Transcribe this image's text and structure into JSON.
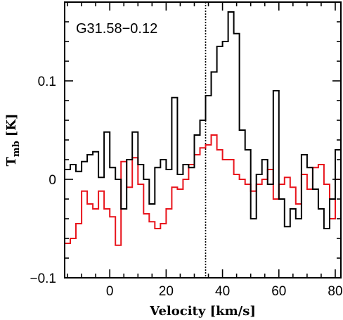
{
  "chart_data": {
    "type": "line",
    "title": "",
    "annotation": "G31.58−0.12",
    "xlabel": "Velocity [km/s]",
    "ylabel_main": "T",
    "ylabel_sub": "mb",
    "ylabel_unit": "[K]",
    "xlim": [
      -16,
      82
    ],
    "ylim": [
      -0.1,
      0.18
    ],
    "x_ticks": [
      0,
      20,
      40,
      60,
      80
    ],
    "x_tick_labels": [
      "0",
      "20",
      "40",
      "60",
      "80"
    ],
    "y_ticks": [
      -0.1,
      0,
      0.1
    ],
    "y_tick_labels": [
      "−0.1",
      "0",
      "0.1"
    ],
    "reference_velocity": 34,
    "series": [
      {
        "color": "#000000",
        "x_edges": [
          -16,
          -14,
          -12,
          -10,
          -8,
          -6,
          -4,
          -2,
          0,
          2,
          4,
          6,
          8,
          10,
          12,
          14,
          16,
          18,
          20,
          22,
          24,
          26,
          28,
          30,
          32,
          34,
          36,
          38,
          40,
          42,
          44,
          46,
          48,
          50,
          52,
          54,
          56,
          58,
          60,
          62,
          64,
          66,
          68,
          70,
          72,
          74,
          76,
          78,
          80,
          82
        ],
        "values": [
          0.01,
          0.015,
          0.008,
          0.018,
          0.025,
          0.028,
          0.002,
          0.048,
          0.012,
          0.0,
          -0.03,
          0.02,
          0.048,
          0.015,
          0.0,
          -0.025,
          0.012,
          0.02,
          0.01,
          0.083,
          0.005,
          0.015,
          0.012,
          0.045,
          0.06,
          0.085,
          0.109,
          0.135,
          0.14,
          0.17,
          0.148,
          0.05,
          0.03,
          -0.04,
          0.005,
          0.02,
          -0.005,
          0.09,
          -0.02,
          -0.048,
          -0.03,
          -0.04,
          0.025,
          0.012,
          -0.01,
          -0.03,
          -0.05,
          -0.02,
          0.03,
          -0.042
        ]
      },
      {
        "color": "#e8141c",
        "x_edges": [
          -16,
          -14,
          -12,
          -10,
          -8,
          -6,
          -4,
          -2,
          0,
          2,
          4,
          6,
          8,
          10,
          12,
          14,
          16,
          18,
          20,
          22,
          24,
          26,
          28,
          30,
          32,
          34,
          36,
          38,
          40,
          42,
          44,
          46,
          48,
          50,
          52,
          54,
          56,
          58,
          60,
          62,
          64,
          66,
          68,
          70,
          72,
          74,
          76,
          78,
          80,
          82
        ],
        "values": [
          -0.065,
          -0.06,
          -0.045,
          -0.012,
          -0.025,
          -0.03,
          -0.012,
          -0.03,
          -0.038,
          -0.067,
          0.018,
          -0.008,
          0.022,
          -0.005,
          -0.035,
          -0.043,
          -0.05,
          -0.045,
          -0.03,
          -0.008,
          -0.01,
          0.0,
          0.015,
          0.025,
          0.032,
          0.035,
          0.045,
          0.03,
          0.02,
          0.02,
          0.005,
          0.0,
          -0.005,
          -0.012,
          -0.005,
          0.0,
          0.01,
          -0.02,
          -0.005,
          0.002,
          -0.008,
          -0.025,
          0.005,
          -0.01,
          0.012,
          0.015,
          -0.005,
          -0.04,
          0.0,
          -0.03
        ]
      }
    ]
  }
}
